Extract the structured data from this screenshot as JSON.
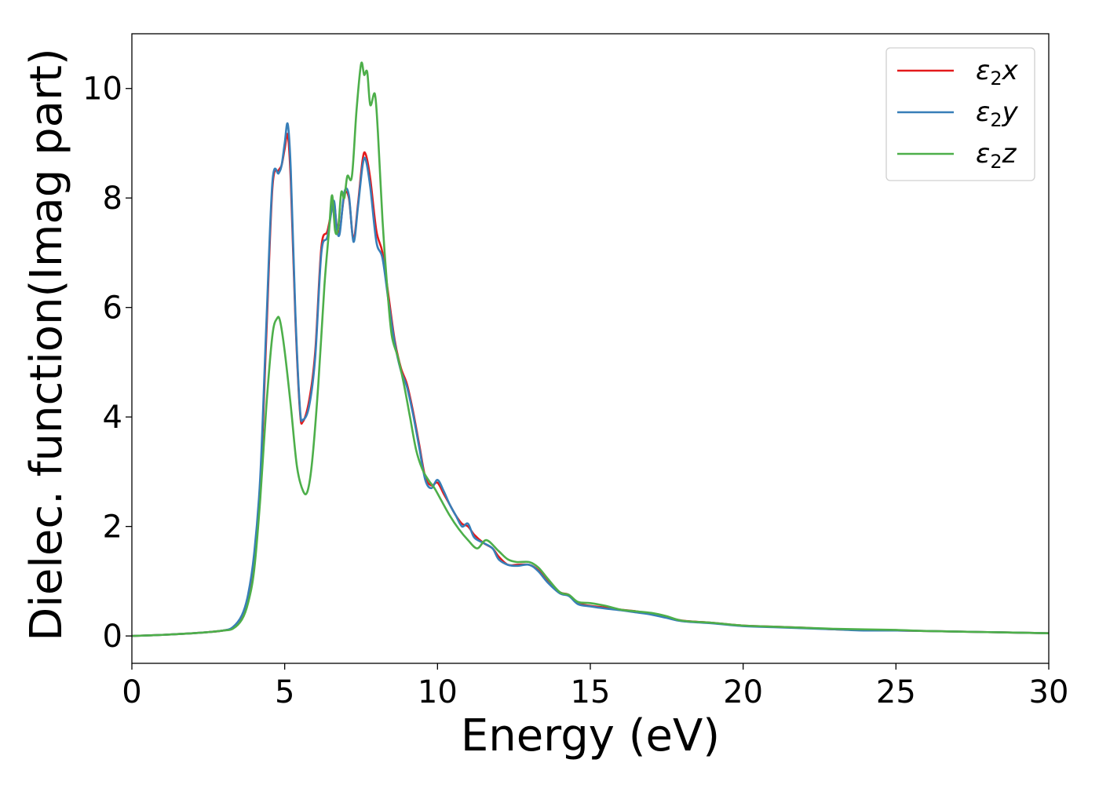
{
  "chart_data": {
    "type": "line",
    "xlabel": "Energy (eV)",
    "ylabel": "Dielec. function(Imag part)",
    "xlim": [
      0,
      30
    ],
    "ylim": [
      -0.5,
      11
    ],
    "xticks": [
      0,
      5,
      10,
      15,
      20,
      25,
      30
    ],
    "yticks": [
      0,
      2,
      4,
      6,
      8,
      10
    ],
    "grid": false,
    "legend_position": "top-right",
    "series": [
      {
        "name": "ε₂x",
        "legend_base": "ε",
        "legend_sub": "2",
        "legend_axis": "x",
        "color": "#e41a1c",
        "x": [
          0,
          1,
          2,
          2.5,
          3,
          3.3,
          3.6,
          3.8,
          4,
          4.2,
          4.4,
          4.6,
          4.8,
          4.9,
          5,
          5.1,
          5.2,
          5.35,
          5.5,
          5.6,
          5.8,
          6,
          6.2,
          6.4,
          6.6,
          6.7,
          6.8,
          6.95,
          7.1,
          7.25,
          7.4,
          7.55,
          7.65,
          7.8,
          8,
          8.2,
          8.4,
          8.6,
          8.8,
          9,
          9.2,
          9.4,
          9.6,
          9.8,
          10,
          10.2,
          10.4,
          10.6,
          10.8,
          11,
          11.2,
          11.5,
          11.8,
          12,
          12.3,
          12.6,
          13,
          13.3,
          13.6,
          14,
          14.3,
          14.6,
          15,
          15.5,
          16,
          16.5,
          17,
          17.5,
          18,
          19,
          20,
          21,
          22,
          23,
          24,
          25,
          26,
          27,
          28,
          29,
          30
        ],
        "values": [
          0,
          0.02,
          0.05,
          0.07,
          0.1,
          0.15,
          0.35,
          0.7,
          1.4,
          2.7,
          5.5,
          8.2,
          8.5,
          8.6,
          8.9,
          9.15,
          8.3,
          5.8,
          4.1,
          3.92,
          4.3,
          5.2,
          7.1,
          7.4,
          7.9,
          7.5,
          7.4,
          8.05,
          8.0,
          7.25,
          7.9,
          8.7,
          8.8,
          8.35,
          7.4,
          7.0,
          6.2,
          5.4,
          4.9,
          4.6,
          4.1,
          3.5,
          2.9,
          2.75,
          2.8,
          2.6,
          2.4,
          2.2,
          2.05,
          2.0,
          1.85,
          1.7,
          1.6,
          1.45,
          1.3,
          1.3,
          1.3,
          1.2,
          1.0,
          0.8,
          0.75,
          0.6,
          0.55,
          0.52,
          0.48,
          0.45,
          0.4,
          0.35,
          0.28,
          0.24,
          0.19,
          0.17,
          0.15,
          0.12,
          0.11,
          0.1,
          0.09,
          0.08,
          0.07,
          0.06,
          0.05
        ]
      },
      {
        "name": "ε₂y",
        "legend_base": "ε",
        "legend_sub": "2",
        "legend_axis": "y",
        "color": "#377eb8",
        "x": [
          0,
          1,
          2,
          2.5,
          3,
          3.3,
          3.6,
          3.8,
          4,
          4.2,
          4.4,
          4.6,
          4.8,
          4.9,
          5,
          5.1,
          5.2,
          5.35,
          5.5,
          5.6,
          5.8,
          6,
          6.2,
          6.4,
          6.6,
          6.7,
          6.8,
          6.95,
          7.1,
          7.25,
          7.4,
          7.55,
          7.65,
          7.8,
          8,
          8.2,
          8.4,
          8.6,
          8.8,
          9,
          9.2,
          9.4,
          9.6,
          9.8,
          10,
          10.2,
          10.4,
          10.6,
          10.8,
          11,
          11.2,
          11.5,
          11.8,
          12,
          12.3,
          12.6,
          13,
          13.3,
          13.6,
          14,
          14.3,
          14.6,
          15,
          15.5,
          16,
          16.5,
          17,
          17.5,
          18,
          19,
          20,
          21,
          22,
          23,
          24,
          25,
          26,
          27,
          28,
          29,
          30
        ],
        "values": [
          0,
          0.02,
          0.05,
          0.07,
          0.1,
          0.16,
          0.38,
          0.75,
          1.5,
          2.9,
          5.7,
          8.3,
          8.45,
          8.6,
          9.0,
          9.35,
          8.5,
          5.9,
          4.15,
          3.95,
          4.2,
          5.1,
          7.0,
          7.3,
          7.95,
          7.45,
          7.35,
          8.1,
          8.05,
          7.2,
          7.85,
          8.6,
          8.7,
          8.2,
          7.2,
          6.9,
          6.1,
          5.35,
          4.85,
          4.55,
          4.05,
          3.45,
          2.85,
          2.7,
          2.85,
          2.65,
          2.4,
          2.2,
          2.0,
          2.05,
          1.8,
          1.7,
          1.6,
          1.4,
          1.3,
          1.28,
          1.3,
          1.18,
          0.98,
          0.78,
          0.73,
          0.58,
          0.54,
          0.5,
          0.47,
          0.43,
          0.39,
          0.33,
          0.27,
          0.23,
          0.18,
          0.16,
          0.14,
          0.12,
          0.1,
          0.1,
          0.09,
          0.08,
          0.07,
          0.06,
          0.05
        ]
      },
      {
        "name": "ε₂z",
        "legend_base": "ε",
        "legend_sub": "2",
        "legend_axis": "z",
        "color": "#4daf4a",
        "x": [
          0,
          1,
          2,
          2.5,
          3,
          3.3,
          3.6,
          3.8,
          4,
          4.2,
          4.4,
          4.6,
          4.75,
          4.85,
          5,
          5.2,
          5.4,
          5.6,
          5.75,
          5.9,
          6.1,
          6.3,
          6.45,
          6.55,
          6.65,
          6.75,
          6.85,
          6.95,
          7.05,
          7.2,
          7.35,
          7.5,
          7.6,
          7.7,
          7.8,
          7.95,
          8.05,
          8.2,
          8.35,
          8.5,
          8.7,
          8.9,
          9.1,
          9.3,
          9.5,
          9.7,
          9.9,
          10.1,
          10.4,
          10.7,
          11,
          11.3,
          11.6,
          12,
          12.3,
          12.6,
          13,
          13.3,
          13.6,
          14,
          14.3,
          14.6,
          15,
          15.5,
          16,
          16.5,
          17,
          17.5,
          18,
          19,
          20,
          21,
          22,
          23,
          24,
          25,
          26,
          27,
          28,
          29,
          30
        ],
        "values": [
          0,
          0.02,
          0.05,
          0.07,
          0.1,
          0.13,
          0.3,
          0.6,
          1.2,
          2.5,
          4.2,
          5.5,
          5.8,
          5.75,
          5.2,
          4.2,
          3.1,
          2.65,
          2.65,
          3.2,
          4.6,
          6.4,
          7.4,
          8.05,
          7.4,
          7.45,
          8.1,
          8.0,
          8.4,
          8.4,
          9.6,
          10.45,
          10.25,
          10.3,
          9.7,
          9.9,
          9.2,
          7.6,
          6.4,
          5.5,
          5.1,
          4.6,
          4.0,
          3.4,
          3.05,
          2.85,
          2.7,
          2.5,
          2.2,
          1.95,
          1.75,
          1.6,
          1.75,
          1.55,
          1.4,
          1.35,
          1.35,
          1.25,
          1.05,
          0.8,
          0.75,
          0.62,
          0.6,
          0.55,
          0.48,
          0.45,
          0.42,
          0.36,
          0.28,
          0.24,
          0.19,
          0.17,
          0.15,
          0.13,
          0.12,
          0.11,
          0.09,
          0.08,
          0.07,
          0.06,
          0.05
        ]
      }
    ]
  }
}
